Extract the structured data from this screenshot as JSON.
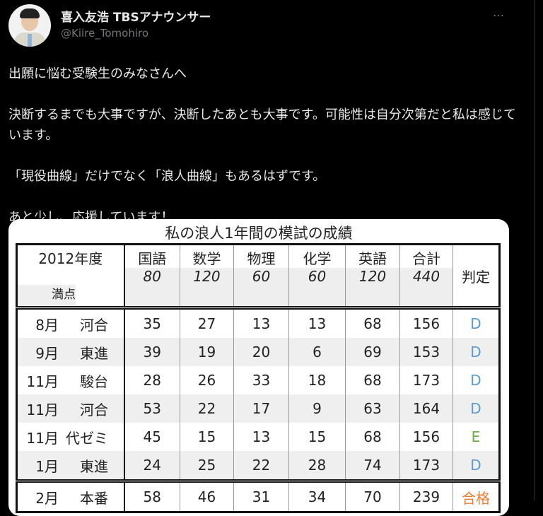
{
  "tweet": {
    "display_name": "喜入友浩 TBSアナウンサー",
    "handle": "@Kiire_Tomohiro",
    "more_icon": "…",
    "paragraphs": [
      "出願に悩む受験生のみなさんへ",
      "決断するまでも大事ですが、決断したあとも大事です。可能性は自分次第だと私は感じています。",
      "「現役曲線」だけでなく「浪人曲線」もあるはずです。",
      "あと少し、応援しています！"
    ]
  },
  "image": {
    "title": "私の浪人1年間の模試の成績",
    "year_label": "2012年度",
    "full_score_label": "満点",
    "judgement_label": "判定",
    "subjects": [
      "国語",
      "数学",
      "物理",
      "化学",
      "英語",
      "合計"
    ],
    "full_scores": [
      "80",
      "120",
      "60",
      "60",
      "120",
      "440"
    ],
    "rows": [
      {
        "month": "8月",
        "provider": "河合",
        "scores": [
          "35",
          "27",
          "13",
          "13",
          "68",
          "156"
        ],
        "grade": "D"
      },
      {
        "month": "9月",
        "provider": "東進",
        "scores": [
          "39",
          "19",
          "20",
          "6",
          "69",
          "153"
        ],
        "grade": "D"
      },
      {
        "month": "11月",
        "provider": "駿台",
        "scores": [
          "28",
          "26",
          "33",
          "18",
          "68",
          "173"
        ],
        "grade": "D"
      },
      {
        "month": "11月",
        "provider": "河合",
        "scores": [
          "53",
          "22",
          "17",
          "9",
          "63",
          "164"
        ],
        "grade": "D"
      },
      {
        "month": "11月",
        "provider": "代ゼミ",
        "scores": [
          "45",
          "15",
          "13",
          "15",
          "68",
          "156"
        ],
        "grade": "E"
      },
      {
        "month": "1月",
        "provider": "東進",
        "scores": [
          "24",
          "25",
          "22",
          "28",
          "74",
          "173"
        ],
        "grade": "D"
      }
    ],
    "final": {
      "month": "2月",
      "provider": "本番",
      "scores": [
        "58",
        "46",
        "31",
        "34",
        "70",
        "239"
      ],
      "grade": "合格"
    },
    "grade_colors": {
      "D": "#5b9bd5",
      "E": "#70ad47",
      "合格": "#ed7d31"
    }
  }
}
